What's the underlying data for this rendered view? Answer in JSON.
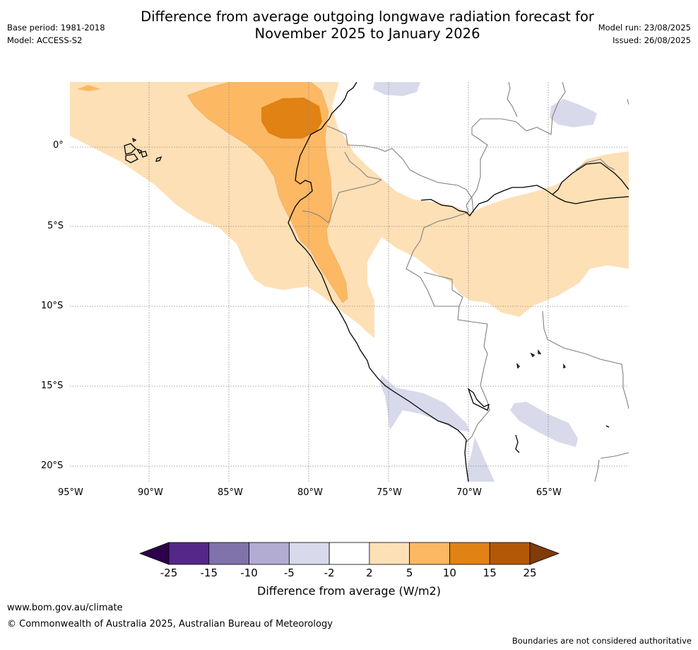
{
  "header": {
    "title_line1": "Difference from average outgoing longwave radiation forecast for",
    "title_line2": "November 2025 to January 2026",
    "base_period": "Base period: 1981-2018",
    "model": "Model: ACCESS-S2",
    "model_run": "Model run: 23/08/2025",
    "issued": "Issued: 26/08/2025"
  },
  "map": {
    "lon_labels": [
      "95°W",
      "90°W",
      "85°W",
      "80°W",
      "75°W",
      "70°W",
      "65°W"
    ],
    "lat_labels": [
      "0°",
      "5°S",
      "10°S",
      "15°S",
      "20°S"
    ],
    "colors": {
      "plus_2_5": "#fee0b6",
      "plus_5_10": "#fdb863",
      "plus_10_15": "#e08214",
      "minus_2_5": "#d8daeb",
      "coast": "#000000",
      "border": "#808080",
      "grid": "#888888"
    }
  },
  "colorbar": {
    "tick_labels": [
      "-25",
      "-15",
      "-10",
      "-5",
      "-2",
      "2",
      "5",
      "10",
      "15",
      "25"
    ],
    "colors": [
      "#2d004b",
      "#542788",
      "#8073ac",
      "#b2abd2",
      "#d8daeb",
      "#ffffff",
      "#fee0b6",
      "#fdb863",
      "#e08214",
      "#b35806",
      "#7f3b08"
    ],
    "label": "Difference from average (W/m2)"
  },
  "footer": {
    "url": "www.bom.gov.au/climate",
    "copyright": "© Commonwealth of Australia 2025, Australian Bureau of Meteorology",
    "disclaimer": "Boundaries are not considered authoritative"
  }
}
